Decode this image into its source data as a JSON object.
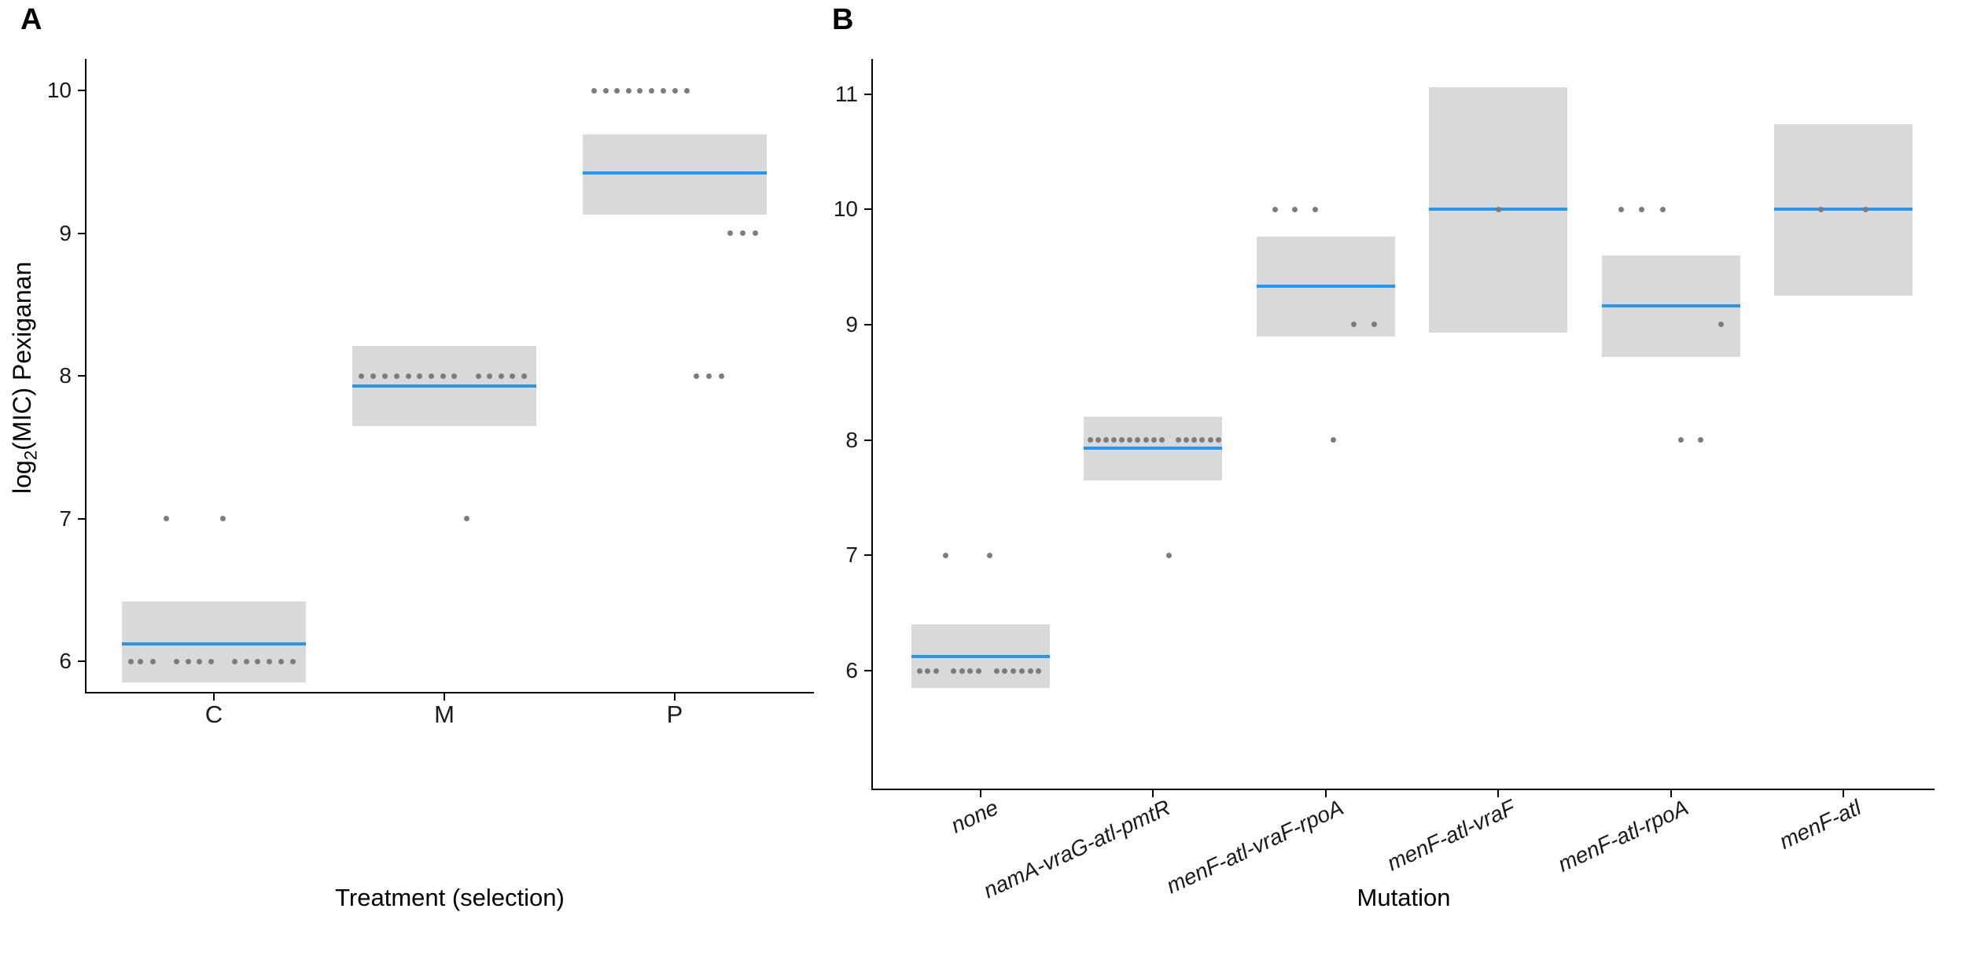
{
  "styles": {
    "mean_color": "#2196F3",
    "band_color": "#D9D9D9",
    "point_color": "#7C7C7C",
    "axis_color": "#000000"
  },
  "chart_data": [
    {
      "type": "scatter",
      "panel_label": "A",
      "xlabel": "Treatment (selection)",
      "ylabel": "log2(MIC) Pexiganan",
      "ylabel_parts": {
        "prefix": "log",
        "sub": "2",
        "suffix": "(MIC) Pexiganan"
      },
      "y_ticks": [
        6,
        7,
        8,
        9,
        10
      ],
      "ylim": [
        5.79,
        10.22
      ],
      "x_labels_italic": false,
      "legend": "none",
      "grid": "off",
      "categories": [
        "C",
        "M",
        "P"
      ],
      "groups": [
        {
          "category": "C",
          "mean": 6.12,
          "ci_low": 5.85,
          "ci_high": 6.42,
          "points": [
            {
              "value": 6,
              "jitter": [
                -106,
                -94,
                -78,
                -48,
                -33,
                -19,
                -4,
                26,
                41,
                55,
                70,
                85,
                100
              ]
            },
            {
              "value": 7,
              "jitter": [
                -61,
                11
              ]
            }
          ]
        },
        {
          "category": "M",
          "mean": 7.93,
          "ci_low": 7.65,
          "ci_high": 8.21,
          "points": [
            {
              "value": 8,
              "jitter": [
                -106,
                -91,
                -76,
                -61,
                -46,
                -32,
                -17,
                -2,
                12,
                43,
                57,
                72,
                86,
                101
              ]
            },
            {
              "value": 7,
              "jitter": [
                28
              ]
            }
          ]
        },
        {
          "category": "P",
          "mean": 9.42,
          "ci_low": 9.13,
          "ci_high": 9.69,
          "points": [
            {
              "value": 10,
              "jitter": [
                -103,
                -88,
                -74,
                -59,
                -45,
                -30,
                -15,
                0,
                15
              ]
            },
            {
              "value": 9,
              "jitter": [
                70,
                86,
                102
              ]
            },
            {
              "value": 8,
              "jitter": [
                27,
                43,
                59
              ]
            }
          ]
        }
      ]
    },
    {
      "type": "scatter",
      "panel_label": "B",
      "xlabel": "Mutation",
      "ylabel": "",
      "y_ticks": [
        6,
        7,
        8,
        9,
        10,
        11
      ],
      "ylim": [
        4.98,
        11.3
      ],
      "x_labels_italic": true,
      "legend": "none",
      "grid": "off",
      "categories": [
        "none",
        "namA-vraG-atl-pmtR",
        "menF-atl-vraF-rpoA",
        "menF-atl-vraF",
        "menF-atl-rpoA",
        "menF-atl"
      ],
      "groups": [
        {
          "category": "none",
          "mean": 6.12,
          "ci_low": 5.85,
          "ci_high": 6.4,
          "points": [
            {
              "value": 6,
              "jitter": [
                -78,
                -68,
                -57,
                -35,
                -24,
                -14,
                -3,
                20,
                30,
                41,
                52,
                63,
                73
              ]
            },
            {
              "value": 7,
              "jitter": [
                -45,
                11
              ]
            }
          ]
        },
        {
          "category": "namA-vraG-atl-pmtR",
          "mean": 7.93,
          "ci_low": 7.65,
          "ci_high": 8.2,
          "points": [
            {
              "value": 8,
              "jitter": [
                -80,
                -70,
                -60,
                -50,
                -40,
                -30,
                -20,
                -9,
                1,
                11,
                32,
                42,
                52,
                62,
                73,
                83
              ]
            },
            {
              "value": 7,
              "jitter": [
                20
              ]
            }
          ]
        },
        {
          "category": "menF-atl-vraF-rpoA",
          "mean": 9.33,
          "ci_low": 8.9,
          "ci_high": 9.76,
          "points": [
            {
              "value": 10,
              "jitter": [
                -64,
                -39,
                -13
              ]
            },
            {
              "value": 9,
              "jitter": [
                36,
                62
              ]
            },
            {
              "value": 8,
              "jitter": [
                10
              ]
            }
          ]
        },
        {
          "category": "menF-atl-vraF",
          "mean": 10.0,
          "ci_low": 8.93,
          "ci_high": 11.06,
          "points": [
            {
              "value": 10,
              "jitter": [
                0
              ]
            }
          ]
        },
        {
          "category": "menF-atl-rpoA",
          "mean": 9.16,
          "ci_low": 8.72,
          "ci_high": 9.6,
          "points": [
            {
              "value": 10,
              "jitter": [
                -63,
                -37,
                -10
              ]
            },
            {
              "value": 9,
              "jitter": [
                64
              ]
            },
            {
              "value": 8,
              "jitter": [
                13,
                38
              ]
            }
          ]
        },
        {
          "category": "menF-atl",
          "mean": 10.0,
          "ci_low": 9.25,
          "ci_high": 10.74,
          "points": [
            {
              "value": 10,
              "jitter": [
                -29,
                28
              ]
            }
          ]
        }
      ]
    }
  ]
}
